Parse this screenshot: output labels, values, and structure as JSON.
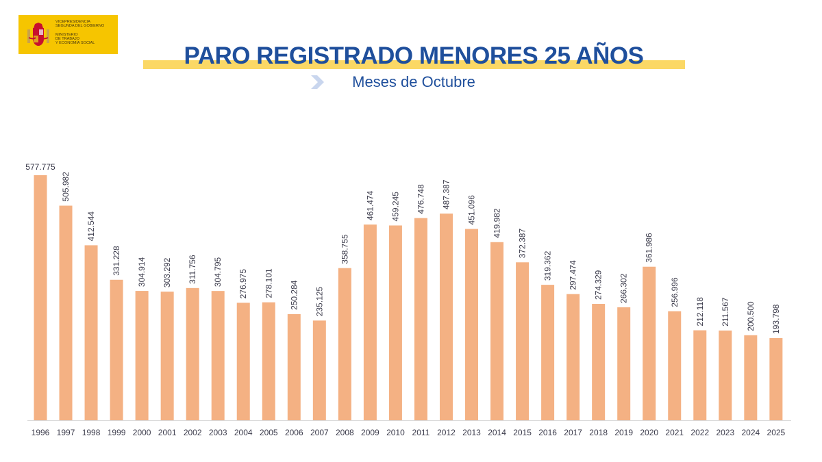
{
  "logo": {
    "line1": "VICEPRESIDENCIA",
    "line2": "SEGUNDA DEL GOBIERNO",
    "line3": "MINISTERIO",
    "line4": "DE TRABAJO",
    "line5": "Y ECONOMÍA SOCIAL"
  },
  "colors": {
    "bar": "#f4b183",
    "title": "#1f4f9c",
    "highlight": "#fbd865",
    "logo_bg": "#f6c500"
  },
  "chart_data": {
    "type": "bar",
    "title": "PARO REGISTRADO MENORES 25 AÑOS",
    "subtitle": "Meses de Octubre",
    "xlabel": "",
    "ylabel": "",
    "ylim": [
      0,
      577775
    ],
    "grid": false,
    "categories": [
      "1996",
      "1997",
      "1998",
      "1999",
      "2000",
      "2001",
      "2002",
      "2003",
      "2004",
      "2005",
      "2006",
      "2007",
      "2008",
      "2009",
      "2010",
      "2011",
      "2012",
      "2013",
      "2014",
      "2015",
      "2016",
      "2017",
      "2018",
      "2019",
      "2020",
      "2021",
      "2022",
      "2023",
      "2024",
      "2025"
    ],
    "values": [
      577775,
      505982,
      412544,
      331228,
      304914,
      303292,
      311756,
      304795,
      276975,
      278101,
      250284,
      235125,
      358755,
      461474,
      459245,
      476748,
      487387,
      451096,
      419982,
      372387,
      319362,
      297474,
      274329,
      266302,
      361986,
      256996,
      212118,
      211567,
      200500,
      193798
    ],
    "data_labels": [
      "577.775",
      "505.982",
      "412.544",
      "331.228",
      "304.914",
      "303.292",
      "311.756",
      "304.795",
      "276.975",
      "278.101",
      "250.284",
      "235.125",
      "358.755",
      "461.474",
      "459.245",
      "476.748",
      "487.387",
      "451.096",
      "419.982",
      "372.387",
      "319.362",
      "297.474",
      "274.329",
      "266.302",
      "361.986",
      "256.996",
      "212.118",
      "211.567",
      "200.500",
      "193.798"
    ]
  }
}
